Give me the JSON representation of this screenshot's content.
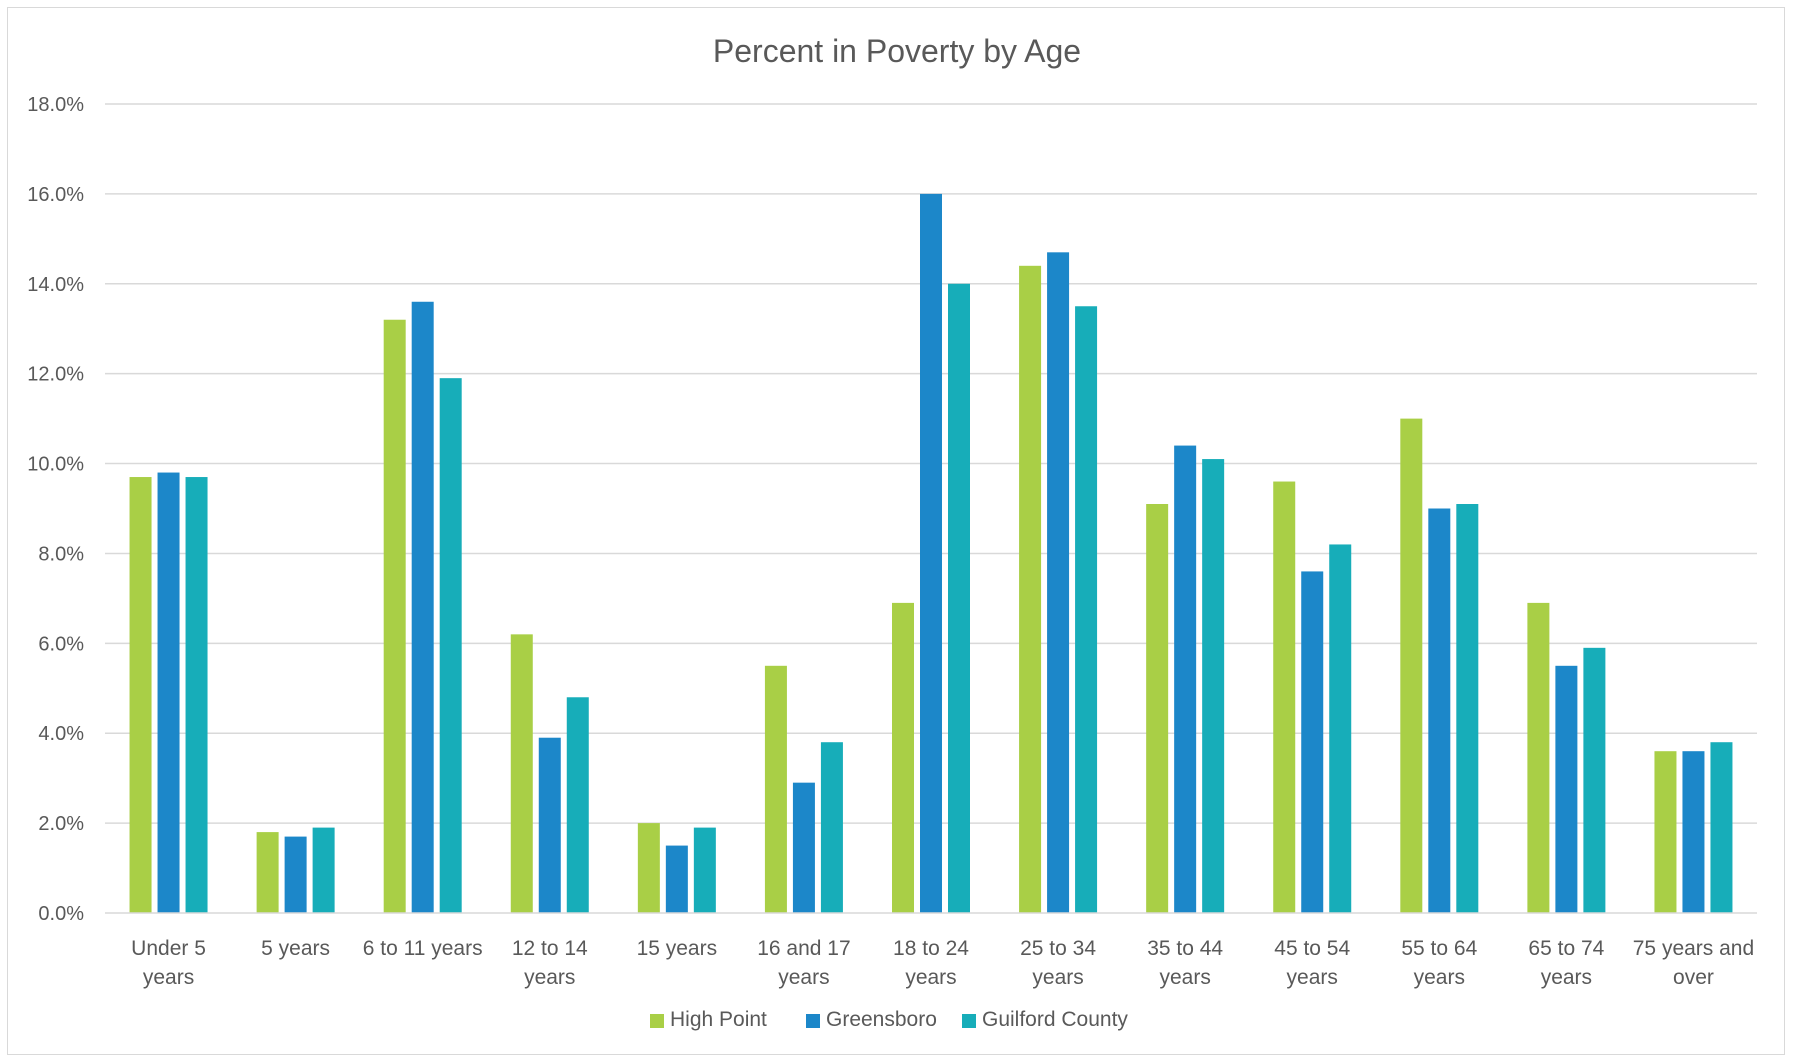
{
  "chart_data": {
    "type": "bar",
    "title": "Percent in Poverty by Age",
    "xlabel": "",
    "ylabel": "",
    "ylim": [
      0,
      18
    ],
    "yticks": [
      "0.0%",
      "2.0%",
      "4.0%",
      "6.0%",
      "8.0%",
      "10.0%",
      "12.0%",
      "14.0%",
      "16.0%",
      "18.0%"
    ],
    "grid": true,
    "legend_position": "bottom",
    "categories": [
      [
        "Under 5",
        "years"
      ],
      [
        "5 years"
      ],
      [
        "6 to 11 years"
      ],
      [
        "12 to 14",
        "years"
      ],
      [
        "15 years"
      ],
      [
        "16 and 17",
        "years"
      ],
      [
        "18 to 24",
        "years"
      ],
      [
        "25 to 34",
        "years"
      ],
      [
        "35 to 44",
        "years"
      ],
      [
        "45 to 54",
        "years"
      ],
      [
        "55 to 64",
        "years"
      ],
      [
        "65 to 74",
        "years"
      ],
      [
        "75 years and",
        "over"
      ]
    ],
    "series": [
      {
        "name": "High Point",
        "color": "#a9cf46",
        "values": [
          9.7,
          1.8,
          13.2,
          6.2,
          2.0,
          5.5,
          6.9,
          14.4,
          9.1,
          9.6,
          11.0,
          6.9,
          3.6
        ]
      },
      {
        "name": "Greensboro",
        "color": "#1c87c9",
        "values": [
          9.8,
          1.7,
          13.6,
          3.9,
          1.5,
          2.9,
          16.0,
          14.7,
          10.4,
          7.6,
          9.0,
          5.5,
          3.6
        ]
      },
      {
        "name": "Guilford County",
        "color": "#17adb9",
        "values": [
          9.7,
          1.9,
          11.9,
          4.8,
          1.9,
          3.8,
          14.0,
          13.5,
          10.1,
          8.2,
          9.1,
          5.9,
          3.8
        ]
      }
    ]
  }
}
